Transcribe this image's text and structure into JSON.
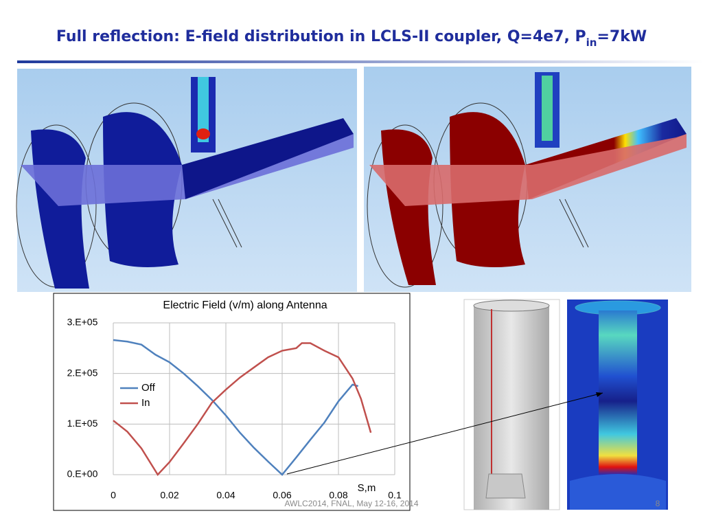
{
  "title": {
    "main": "Full reflection: E-field distribution in LCLS-II coupler, Q=4e7, P",
    "subscript": "in",
    "tail": "=7kW"
  },
  "chart_data": {
    "type": "line",
    "title": "Electric Field (v/m) along Antenna",
    "x_label": "S,m",
    "xlim": [
      0,
      0.1
    ],
    "xticks": [
      0,
      0.02,
      0.04,
      0.06,
      0.08,
      0.1
    ],
    "ylim": [
      0,
      300000
    ],
    "yticks": [
      {
        "value": 0,
        "label": "0.E+00"
      },
      {
        "value": 100000,
        "label": "1.E+05"
      },
      {
        "value": 200000,
        "label": "2.E+05"
      },
      {
        "value": 300000,
        "label": "3.E+05"
      }
    ],
    "grid": true,
    "legend": "left",
    "series": [
      {
        "name": "Off",
        "color": "#4f81bd",
        "x": [
          0,
          0.005,
          0.01,
          0.015,
          0.02,
          0.025,
          0.03,
          0.035,
          0.04,
          0.045,
          0.05,
          0.055,
          0.06,
          0.065,
          0.07,
          0.075,
          0.08,
          0.085,
          0.087
        ],
        "values": [
          266000,
          263000,
          257000,
          237000,
          222000,
          200000,
          175000,
          148000,
          117000,
          83000,
          53000,
          26000,
          0,
          34000,
          69000,
          103000,
          145000,
          178000,
          175000
        ]
      },
      {
        "name": "In",
        "color": "#c0504d",
        "x": [
          0,
          0.005,
          0.01,
          0.0158,
          0.02,
          0.025,
          0.03,
          0.035,
          0.04,
          0.045,
          0.05,
          0.055,
          0.06,
          0.065,
          0.067,
          0.07,
          0.075,
          0.08,
          0.085,
          0.088,
          0.0915
        ],
        "values": [
          107000,
          85000,
          52000,
          0,
          25000,
          62000,
          100000,
          142000,
          168000,
          192000,
          212000,
          232000,
          245000,
          250000,
          260000,
          260000,
          245000,
          232000,
          190000,
          150000,
          83000
        ]
      }
    ]
  },
  "footer": "AWLC2014, FNAL, May 12-16, 2014",
  "page_number": "8"
}
